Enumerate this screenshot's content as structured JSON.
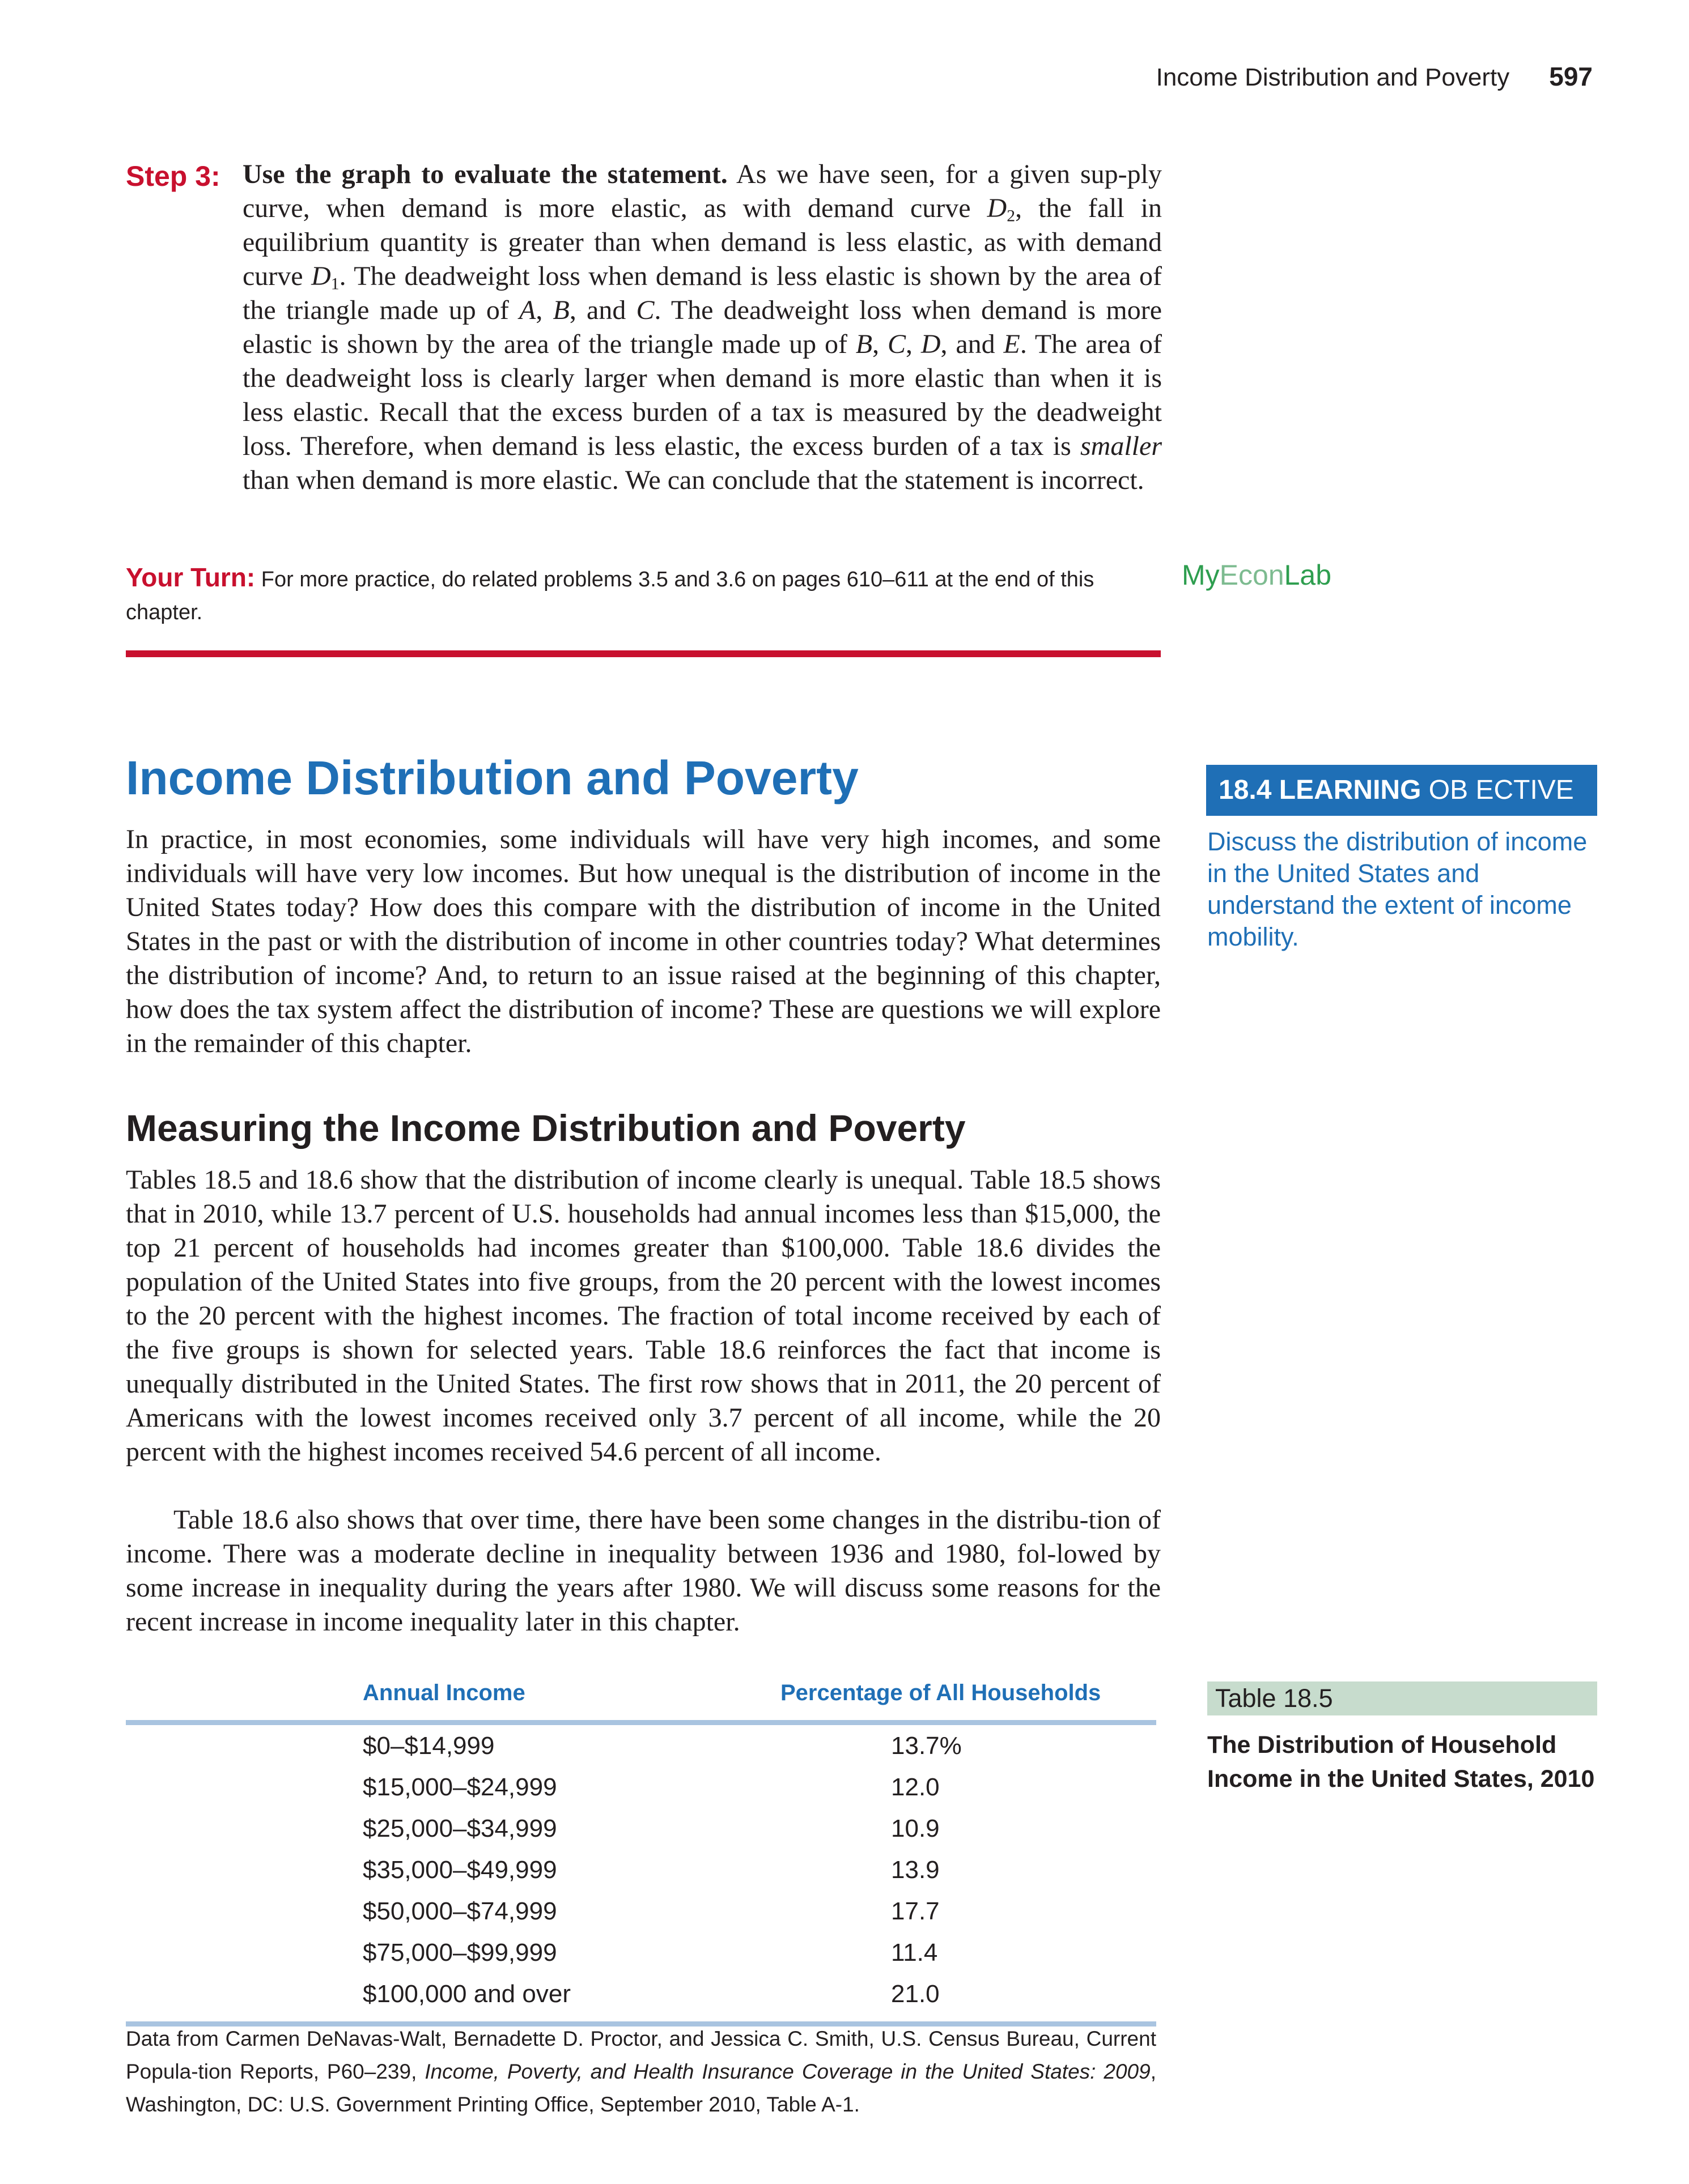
{
  "running_head": {
    "title": "Income Distribution and Poverty",
    "page_number": "597"
  },
  "step3": {
    "label": "Step 3:",
    "lead": "Use the graph to evaluate the statement.",
    "t1": " As we have seen, for a given sup-ply curve, when demand is more elastic, as with demand curve ",
    "d": "D",
    "s2": "2",
    "t2": ", the fall in equilibrium quantity is greater than when demand is less elastic, as with demand curve ",
    "s1": "1",
    "t3": ". The deadweight loss when demand is less elastic is shown by the area of the triangle made up of ",
    "A": "A",
    "c1": ", ",
    "B": "B",
    "and1": ", and ",
    "C": "C",
    "t4": ". The deadweight loss when demand is more elastic is shown by the area of the triangle made up of ",
    "c2": ", ",
    "c3": ", ",
    "D": "D",
    "and2": ", and ",
    "E": "E",
    "t5": ". The area of the deadweight loss is clearly larger when demand is more elastic than when it is less elastic. Recall that the excess burden of a tax is measured by the deadweight loss. Therefore, when demand is less elastic, the excess burden of a tax is ",
    "smaller": "smaller",
    "t6": " than when demand is more elastic. We can conclude that the statement is incorrect."
  },
  "your_turn": {
    "label": "Your Turn:",
    "text": " For more practice, do related problems 3.5 and 3.6 on pages 610–611 at the end of this chapter."
  },
  "myeconlab": {
    "my": "My",
    "econ": "Econ",
    "lab": "Lab"
  },
  "section": {
    "title": "Income Distribution and Poverty",
    "intro": "In practice, in most economies, some individuals will have very high incomes, and some individuals will have very low incomes. But how unequal is the distribution of income in the United States today? How does this compare with the distribution of income in the United States in the past or with the distribution of income in other countries today? What determines the distribution of income? And, to return to an issue raised at the beginning of this chapter, how does the tax system affect the distribution of income? These are questions we will explore in the remainder of this chapter."
  },
  "learning_objective": {
    "label_bold": "18.4 LEARNING",
    "label_rest": " OB ECTIVE",
    "text": "Discuss the distribution of income in the United States and understand the extent of income mobility."
  },
  "subsection": {
    "title": "Measuring the Income Distribution and Poverty",
    "p1": "Tables 18.5 and 18.6 show that the distribution of income clearly is unequal. Table 18.5 shows that in 2010, while 13.7 percent of U.S. households had annual incomes less than $15,000, the top 21 percent of households had incomes greater than $100,000. Table 18.6 divides the population of the United States into five groups, from the 20 percent with the lowest incomes to the 20 percent with the highest incomes. The fraction of total income received by each of the five groups is shown for selected years. Table 18.6 reinforces the fact that income is unequally distributed in the United States. The first row shows that in 2011, the 20 percent of Americans with the lowest incomes received only 3.7 percent of all income, while the 20 percent with the highest incomes received 54.6 percent of all income.",
    "p2": "Table 18.6 also shows that over time, there have been some changes in the distribu-tion of income. There was a moderate decline in inequality between 1936 and 1980, fol-lowed by some increase in inequality during the years after 1980. We will discuss some reasons for the recent increase in income inequality later in this chapter."
  },
  "table": {
    "badge": "Table 18.5",
    "caption": "The Distribution of Household Income in the United States, 2010",
    "headers": [
      "Annual Income",
      "Percentage of All Households"
    ],
    "rows": [
      [
        "$0–$14,999",
        "13.7%"
      ],
      [
        "$15,000–$24,999",
        "12.0"
      ],
      [
        "$25,000–$34,999",
        "10.9"
      ],
      [
        "$35,000–$49,999",
        "13.9"
      ],
      [
        "$50,000–$74,999",
        "17.7"
      ],
      [
        "$75,000–$99,999",
        "11.4"
      ],
      [
        "$100,000 and over",
        "21.0"
      ]
    ],
    "source_a": "Data from Carmen DeNavas-Walt, Bernadette D. Proctor, and Jessica C. Smith, U.S. Census Bureau, Current Popula-tion Reports, P60–239, ",
    "source_title": "Income, Poverty, and Health Insurance Coverage in the United States: 2009",
    "source_b": ", Washington, DC: U.S. Government Printing Office, September 2010, Table A-1."
  }
}
